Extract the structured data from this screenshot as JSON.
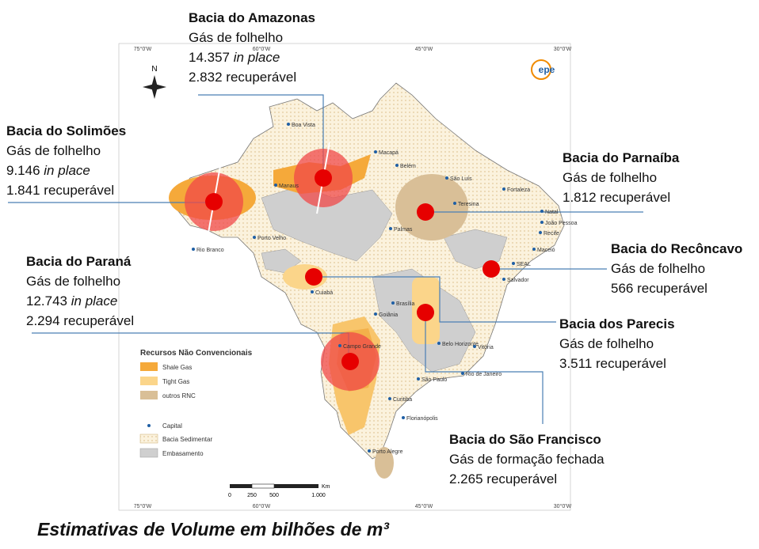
{
  "title": "Estimativas de Volume em bilhões de m³",
  "logo": "epe",
  "north": "N",
  "coordinates": {
    "top": [
      "75°0'W",
      "60°0'W",
      "45°0'W",
      "30°0'W"
    ],
    "bottom": [
      "75°0'W",
      "60°0'W",
      "45°0'W",
      "30°0'W"
    ]
  },
  "scale_bar": {
    "ticks": [
      "0",
      "250",
      "500",
      "1.000"
    ],
    "unit": "Km"
  },
  "legend": {
    "title": "Recursos Não Convencionais",
    "items": [
      "Shale Gas",
      "Tight Gas",
      "outros RNC",
      "Capital",
      "Bacia Sedimentar",
      "Embasamento"
    ]
  },
  "basins": [
    {
      "name": "Bacia do Amazonas",
      "resource": "Gás de folhelho",
      "in_place": {
        "value": "14.357",
        "label": "in place"
      },
      "recoverable": {
        "value": "2.832",
        "label": "recuperável"
      }
    },
    {
      "name": "Bacia do Solimões",
      "resource": "Gás de folhelho",
      "in_place": {
        "value": "9.146",
        "label": "in place"
      },
      "recoverable": {
        "value": "1.841",
        "label": "recuperável"
      }
    },
    {
      "name": "Bacia do Parnaíba",
      "resource": "Gás de folhelho",
      "recoverable": {
        "value": "1.812",
        "label": "recuperável"
      }
    },
    {
      "name": "Bacia do Paraná",
      "resource": "Gás de folhelho",
      "in_place": {
        "value": "12.743",
        "label": "in place"
      },
      "recoverable": {
        "value": "2.294",
        "label": "recuperável"
      }
    },
    {
      "name": "Bacia do Recôncavo",
      "resource": "Gás de folhelho",
      "recoverable": {
        "value": "566",
        "label": "recuperável"
      }
    },
    {
      "name": "Bacia dos Parecis",
      "resource": "Gás de folhelho",
      "recoverable": {
        "value": "3.511",
        "label": "recuperável"
      }
    },
    {
      "name": "Bacia do São Francisco",
      "resource": "Gás de formação fechada",
      "recoverable": {
        "value": "2.265",
        "label": "recuperável"
      }
    }
  ],
  "cities": [
    "Boa Vista",
    "Macapá",
    "Belém",
    "São Luís",
    "Manaus",
    "Teresina",
    "Fortaleza",
    "Natal",
    "João Pessoa",
    "Recife",
    "Maceió",
    "SEAL",
    "Salvador",
    "Palmas",
    "Porto Velho",
    "Rio Branco",
    "Cuiabá",
    "Goiânia",
    "Brasília",
    "Campo Grande",
    "Belo Horizonte",
    "Vitória",
    "Rio de Janeiro",
    "São Paulo",
    "Curitiba",
    "Florianópolis",
    "Porto Alegre"
  ]
}
